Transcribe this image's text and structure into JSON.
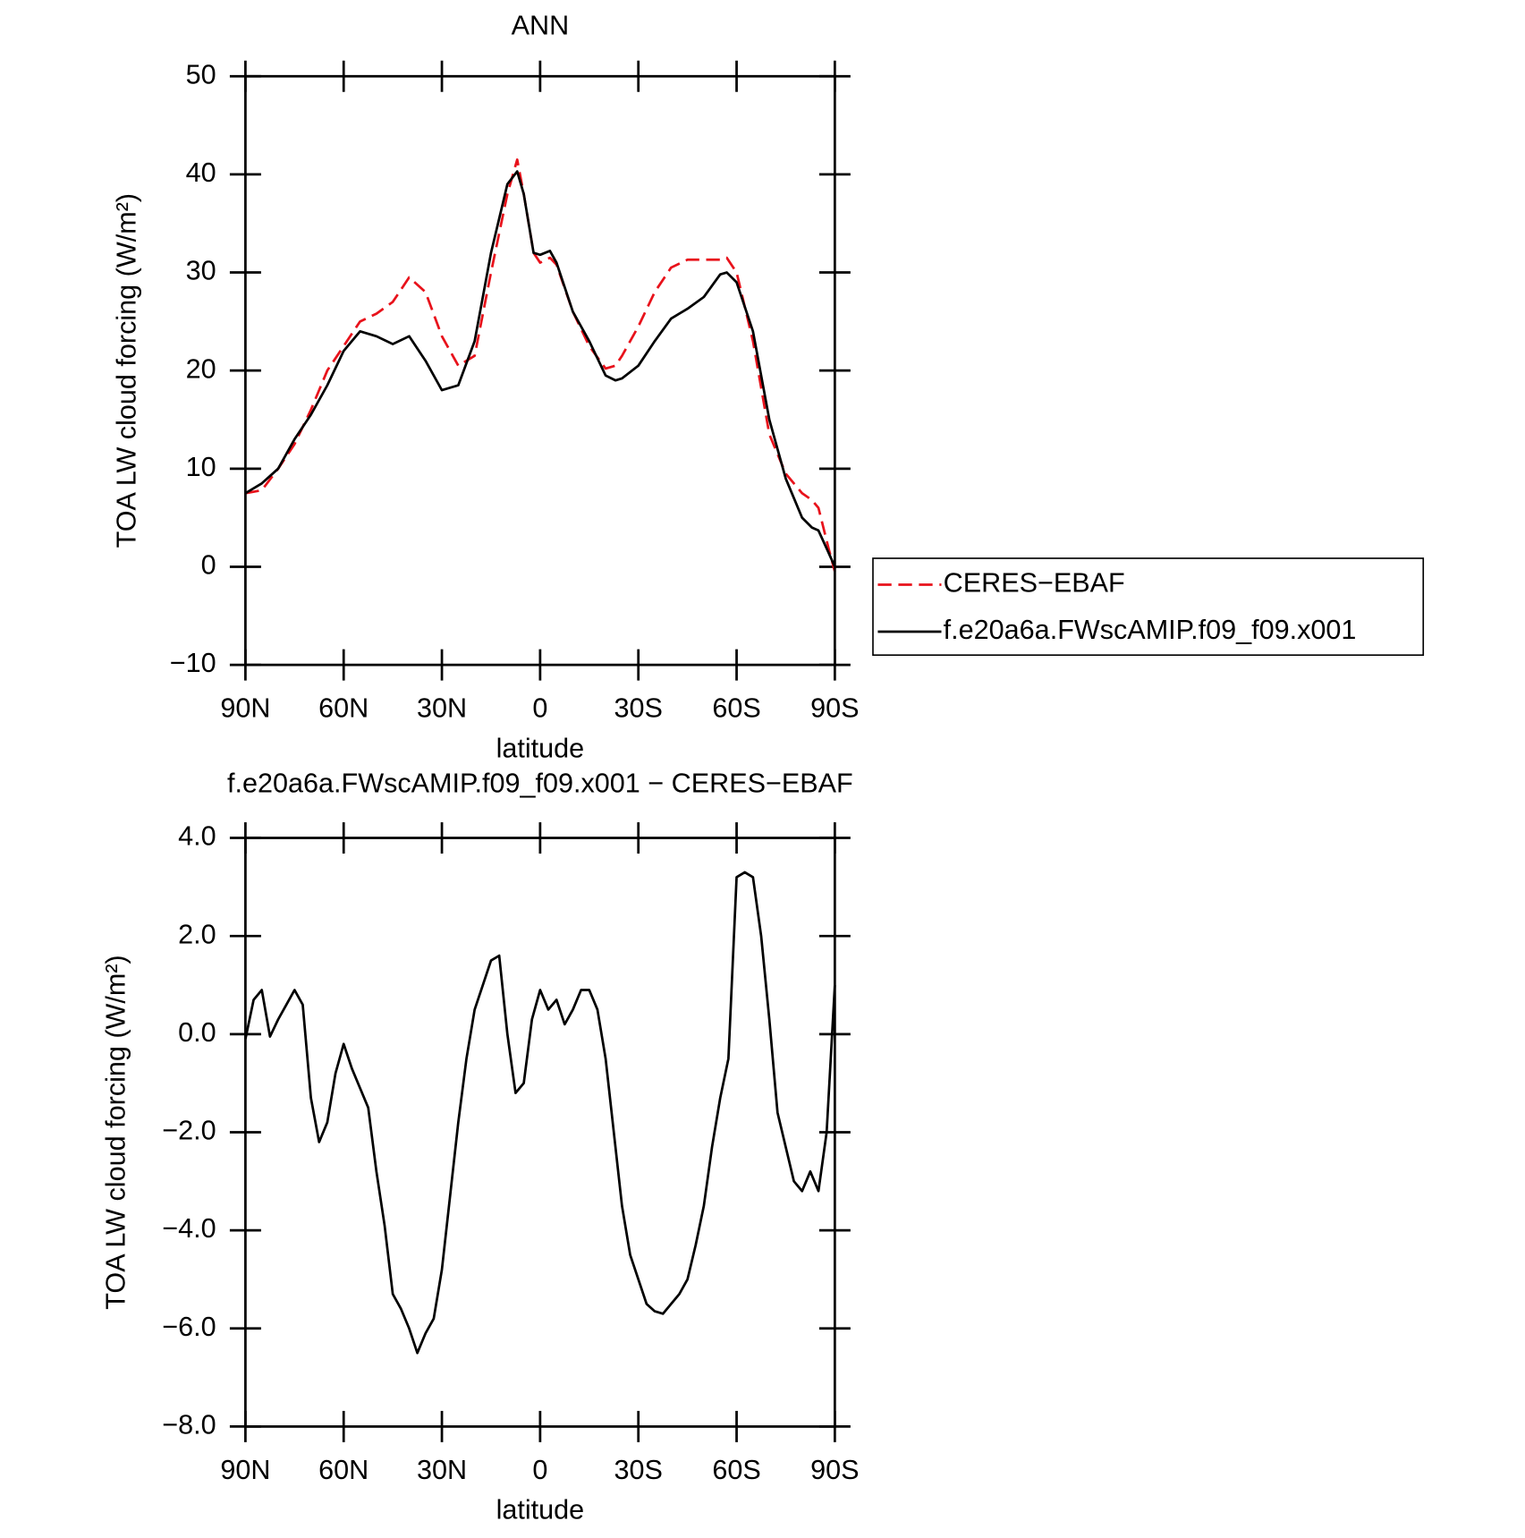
{
  "chart_data": [
    {
      "type": "line",
      "title": "ANN",
      "xlabel": "latitude",
      "ylabel": "TOA LW cloud forcing (W/m²)",
      "xlim": [
        90,
        -90
      ],
      "ylim": [
        -10,
        50
      ],
      "xticks": [
        {
          "value": 90,
          "label": "90N"
        },
        {
          "value": 60,
          "label": "60N"
        },
        {
          "value": 30,
          "label": "30N"
        },
        0,
        {
          "value": -30,
          "label": "30S"
        },
        {
          "value": -60,
          "label": "60S"
        },
        {
          "value": -90,
          "label": "90S"
        }
      ],
      "yticks": [
        {
          "value": -10,
          "label": "−10"
        },
        0,
        10,
        20,
        30,
        40,
        50
      ],
      "legend": "right",
      "x": [
        90,
        85,
        80,
        75,
        70,
        65,
        60,
        55,
        50,
        45,
        40,
        35,
        30,
        25,
        20,
        15,
        10,
        7,
        5,
        2,
        0,
        -3,
        -5,
        -10,
        -15,
        -20,
        -23,
        -25,
        -30,
        -35,
        -40,
        -45,
        -50,
        -55,
        -57,
        -60,
        -65,
        -70,
        -75,
        -80,
        -83,
        -85,
        -88,
        -90
      ],
      "series": [
        {
          "name": "CERES−EBAF",
          "color": "#e8121b",
          "line_style": "dashed",
          "values": [
            7.5,
            7.8,
            10,
            12.5,
            16,
            20,
            22.5,
            25,
            25.8,
            27,
            29.5,
            28,
            23.5,
            20.5,
            21.5,
            30,
            38,
            41.5,
            38,
            32,
            31,
            31.5,
            30.8,
            26,
            22.5,
            20.2,
            20.5,
            21.5,
            24.5,
            28,
            30.5,
            31.3,
            31.3,
            31.3,
            31.5,
            30,
            23,
            13.5,
            9.5,
            7.5,
            6.8,
            6,
            2,
            -0.5
          ]
        },
        {
          "name": "f.e20a6a.FWscAMIP.f09_f09.x001",
          "color": "#000000",
          "line_style": "solid",
          "values": [
            7.5,
            8.5,
            10,
            13,
            15.5,
            18.5,
            22,
            24,
            23.5,
            22.7,
            23.5,
            21,
            18,
            18.5,
            23,
            32,
            39,
            40.3,
            38,
            32,
            31.8,
            32.2,
            31,
            26,
            23,
            19.5,
            19,
            19.2,
            20.5,
            23,
            25.3,
            26.3,
            27.5,
            29.8,
            30,
            29,
            24,
            15,
            9,
            5,
            4,
            3.7,
            1.5,
            0
          ]
        }
      ]
    },
    {
      "type": "line",
      "title": "f.e20a6a.FWscAMIP.f09_f09.x001 − CERES−EBAF",
      "xlabel": "latitude",
      "ylabel": "TOA LW cloud forcing (W/m²)",
      "xlim": [
        90,
        -90
      ],
      "ylim": [
        -8,
        4
      ],
      "xticks": [
        {
          "value": 90,
          "label": "90N"
        },
        {
          "value": 60,
          "label": "60N"
        },
        {
          "value": 30,
          "label": "30N"
        },
        0,
        {
          "value": -30,
          "label": "30S"
        },
        {
          "value": -60,
          "label": "60S"
        },
        {
          "value": -90,
          "label": "90S"
        }
      ],
      "yticks": [
        {
          "value": -8,
          "label": "−8.0"
        },
        {
          "value": -6,
          "label": "−6.0"
        },
        {
          "value": -4,
          "label": "−4.0"
        },
        {
          "value": -2,
          "label": "−2.0"
        },
        {
          "value": 0,
          "label": "0.0"
        },
        {
          "value": 2,
          "label": "2.0"
        },
        {
          "value": 4,
          "label": "4.0"
        }
      ],
      "color": "#000000",
      "x": [
        90,
        87.5,
        85,
        82.5,
        80,
        77.5,
        75,
        72.5,
        70,
        67.5,
        65,
        62.5,
        60,
        57.5,
        55,
        52.5,
        50,
        47.5,
        45,
        42.5,
        40,
        37.5,
        35,
        32.5,
        30,
        27.5,
        25,
        22.5,
        20,
        17.5,
        15,
        12.5,
        10,
        7.5,
        5,
        2.5,
        0,
        -2.5,
        -5,
        -7.5,
        -10,
        -12.5,
        -15,
        -17.5,
        -20,
        -22.5,
        -25,
        -27.5,
        -30,
        -32.5,
        -35,
        -37.5,
        -40,
        -42.5,
        -45,
        -47.5,
        -50,
        -52.5,
        -55,
        -57.5,
        -60,
        -62.5,
        -65,
        -67.5,
        -70,
        -72.5,
        -75,
        -77.5,
        -80,
        -82.5,
        -85,
        -87.5,
        -90
      ],
      "values": [
        -0.1,
        0.7,
        0.9,
        -0.05,
        0.3,
        0.6,
        0.9,
        0.6,
        -1.3,
        -2.2,
        -1.8,
        -0.8,
        -0.2,
        -0.7,
        -1.1,
        -1.5,
        -2.8,
        -3.9,
        -5.3,
        -5.6,
        -6.0,
        -6.5,
        -6.1,
        -5.8,
        -4.8,
        -3.3,
        -1.8,
        -0.5,
        0.5,
        1.0,
        1.5,
        1.6,
        0.0,
        -1.2,
        -1.0,
        0.3,
        0.9,
        0.5,
        0.7,
        0.2,
        0.5,
        0.9,
        0.9,
        0.5,
        -0.5,
        -2.0,
        -3.5,
        -4.5,
        -5.0,
        -5.5,
        -5.65,
        -5.7,
        -5.5,
        -5.3,
        -5.0,
        -4.3,
        -3.5,
        -2.3,
        -1.3,
        -0.5,
        3.2,
        3.3,
        3.2,
        2.0,
        0.3,
        -1.6,
        -2.3,
        -3.0,
        -3.2,
        -2.8,
        -3.2,
        -2.0,
        1.0
      ]
    }
  ]
}
